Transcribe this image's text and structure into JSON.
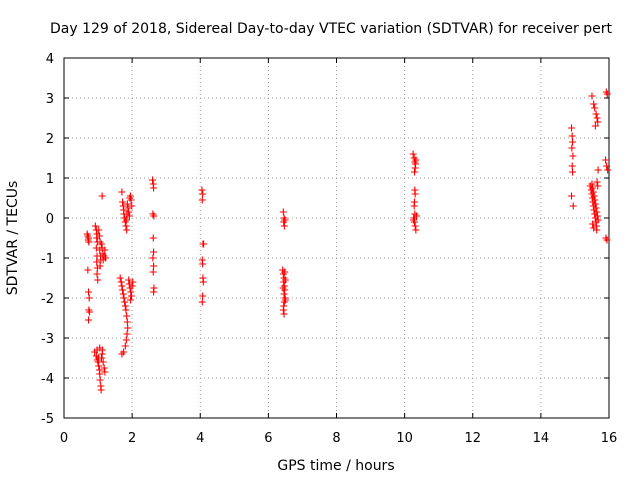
{
  "chart_data": {
    "type": "scatter",
    "title": "Day 129 of 2018, Sidereal Day-to-day VTEC variation (SDTVAR) for receiver pert",
    "xlabel": "GPS time / hours",
    "ylabel": "SDTVAR / TECUs",
    "xlim": [
      0,
      16
    ],
    "ylim": [
      -5,
      4
    ],
    "xticks": [
      "0",
      "2",
      "4",
      "6",
      "8",
      "10",
      "12",
      "14",
      "16"
    ],
    "yticks": [
      "-5",
      "-4",
      "-3",
      "-2",
      "-1",
      "0",
      "1",
      "2",
      "3",
      "4"
    ],
    "grid": true,
    "marker": "+",
    "color": "#ff0000",
    "series": [
      {
        "name": "SDTVAR",
        "points": [
          [
            0.68,
            -0.4
          ],
          [
            0.7,
            -0.45
          ],
          [
            0.72,
            -0.5
          ],
          [
            0.71,
            -0.55
          ],
          [
            0.73,
            -0.6
          ],
          [
            0.7,
            -1.3
          ],
          [
            0.72,
            -1.85
          ],
          [
            0.74,
            -2.0
          ],
          [
            0.73,
            -2.3
          ],
          [
            0.75,
            -2.35
          ],
          [
            0.72,
            -2.55
          ],
          [
            0.92,
            -0.2
          ],
          [
            0.95,
            -0.3
          ],
          [
            0.97,
            -0.4
          ],
          [
            0.96,
            -0.5
          ],
          [
            0.98,
            -0.6
          ],
          [
            0.95,
            -0.75
          ],
          [
            0.97,
            -0.95
          ],
          [
            0.96,
            -1.1
          ],
          [
            0.98,
            -1.25
          ],
          [
            0.97,
            -1.4
          ],
          [
            0.99,
            -1.55
          ],
          [
            1.02,
            -0.3
          ],
          [
            1.04,
            -0.45
          ],
          [
            1.06,
            -0.6
          ],
          [
            1.05,
            -0.8
          ],
          [
            1.07,
            -0.95
          ],
          [
            1.08,
            -1.05
          ],
          [
            1.06,
            -1.2
          ],
          [
            1.1,
            -0.65
          ],
          [
            1.12,
            -0.75
          ],
          [
            1.14,
            -0.9
          ],
          [
            1.15,
            -1.05
          ],
          [
            1.18,
            -0.95
          ],
          [
            1.2,
            -0.8
          ],
          [
            1.22,
            -1.0
          ],
          [
            1.12,
            0.55
          ],
          [
            0.9,
            -3.35
          ],
          [
            0.95,
            -3.45
          ],
          [
            0.98,
            -3.55
          ],
          [
            1.0,
            -3.6
          ],
          [
            1.02,
            -3.7
          ],
          [
            1.04,
            -3.8
          ],
          [
            1.05,
            -3.9
          ],
          [
            1.06,
            -4.05
          ],
          [
            1.08,
            -4.2
          ],
          [
            1.09,
            -4.3
          ],
          [
            1.1,
            -3.5
          ],
          [
            1.12,
            -3.4
          ],
          [
            1.13,
            -3.3
          ],
          [
            1.15,
            -3.6
          ],
          [
            1.18,
            -3.75
          ],
          [
            1.2,
            -3.85
          ],
          [
            1.05,
            -3.25
          ],
          [
            0.97,
            -3.3
          ],
          [
            1.01,
            -3.5
          ],
          [
            1.7,
            0.65
          ],
          [
            1.72,
            0.4
          ],
          [
            1.74,
            0.3
          ],
          [
            1.75,
            0.2
          ],
          [
            1.76,
            0.1
          ],
          [
            1.78,
            0.0
          ],
          [
            1.8,
            -0.1
          ],
          [
            1.82,
            -0.2
          ],
          [
            1.84,
            -0.3
          ],
          [
            1.86,
            0.35
          ],
          [
            1.88,
            0.25
          ],
          [
            1.9,
            0.15
          ],
          [
            1.92,
            0.05
          ],
          [
            1.93,
            0.5
          ],
          [
            1.95,
            0.55
          ],
          [
            1.97,
            0.45
          ],
          [
            1.99,
            0.3
          ],
          [
            1.85,
            0.1
          ],
          [
            1.83,
            -0.05
          ],
          [
            1.65,
            -1.5
          ],
          [
            1.68,
            -1.6
          ],
          [
            1.7,
            -1.7
          ],
          [
            1.72,
            -1.8
          ],
          [
            1.74,
            -1.9
          ],
          [
            1.76,
            -2.0
          ],
          [
            1.78,
            -2.1
          ],
          [
            1.8,
            -2.2
          ],
          [
            1.82,
            -2.3
          ],
          [
            1.84,
            -2.45
          ],
          [
            1.86,
            -2.6
          ],
          [
            1.87,
            -2.75
          ],
          [
            1.85,
            -2.9
          ],
          [
            1.83,
            -3.05
          ],
          [
            1.8,
            -3.2
          ],
          [
            1.75,
            -3.35
          ],
          [
            1.7,
            -3.4
          ],
          [
            1.9,
            -1.55
          ],
          [
            1.92,
            -1.65
          ],
          [
            1.94,
            -1.75
          ],
          [
            1.96,
            -1.85
          ],
          [
            1.98,
            -1.95
          ],
          [
            2.0,
            -1.7
          ],
          [
            2.02,
            -1.6
          ],
          [
            1.95,
            -2.05
          ],
          [
            2.6,
            0.95
          ],
          [
            2.62,
            0.85
          ],
          [
            2.63,
            0.75
          ],
          [
            2.61,
            0.1
          ],
          [
            2.64,
            0.05
          ],
          [
            2.62,
            -0.5
          ],
          [
            2.63,
            -0.85
          ],
          [
            2.61,
            -1.0
          ],
          [
            2.63,
            -1.2
          ],
          [
            2.62,
            -1.35
          ],
          [
            2.64,
            -1.75
          ],
          [
            2.63,
            -1.85
          ],
          [
            4.05,
            0.7
          ],
          [
            4.07,
            0.6
          ],
          [
            4.06,
            0.45
          ],
          [
            4.08,
            -0.65
          ],
          [
            4.1,
            -0.65
          ],
          [
            4.06,
            -1.05
          ],
          [
            4.07,
            -1.15
          ],
          [
            4.08,
            -1.5
          ],
          [
            4.09,
            -1.6
          ],
          [
            4.07,
            -1.95
          ],
          [
            4.06,
            -2.1
          ],
          [
            6.42,
            -1.3
          ],
          [
            6.44,
            -1.4
          ],
          [
            6.46,
            -1.5
          ],
          [
            6.45,
            -1.6
          ],
          [
            6.47,
            -1.7
          ],
          [
            6.48,
            -1.8
          ],
          [
            6.46,
            -1.9
          ],
          [
            6.49,
            -2.0
          ],
          [
            6.47,
            -2.1
          ],
          [
            6.45,
            -2.2
          ],
          [
            6.44,
            -2.3
          ],
          [
            6.46,
            -2.4
          ],
          [
            6.48,
            -1.35
          ],
          [
            6.5,
            -1.55
          ],
          [
            6.43,
            -1.75
          ],
          [
            6.5,
            -2.05
          ],
          [
            6.44,
            0.15
          ],
          [
            6.46,
            0.0
          ],
          [
            6.48,
            -0.05
          ],
          [
            6.45,
            -0.1
          ],
          [
            6.47,
            -0.2
          ],
          [
            6.49,
            -0.05
          ],
          [
            10.25,
            1.6
          ],
          [
            10.28,
            1.5
          ],
          [
            10.3,
            1.4
          ],
          [
            10.32,
            1.35
          ],
          [
            10.31,
            1.25
          ],
          [
            10.29,
            1.15
          ],
          [
            10.33,
            1.45
          ],
          [
            10.3,
            0.7
          ],
          [
            10.31,
            0.6
          ],
          [
            10.29,
            0.4
          ],
          [
            10.28,
            0.3
          ],
          [
            10.3,
            0.1
          ],
          [
            10.27,
            0.0
          ],
          [
            10.29,
            -0.1
          ],
          [
            10.31,
            -0.2
          ],
          [
            10.33,
            -0.3
          ],
          [
            10.26,
            -0.05
          ],
          [
            10.35,
            0.05
          ],
          [
            14.9,
            2.25
          ],
          [
            14.92,
            2.05
          ],
          [
            14.93,
            1.9
          ],
          [
            14.91,
            1.75
          ],
          [
            14.94,
            1.55
          ],
          [
            14.92,
            1.3
          ],
          [
            14.93,
            1.15
          ],
          [
            14.9,
            0.55
          ],
          [
            14.95,
            0.3
          ],
          [
            15.45,
            0.8
          ],
          [
            15.48,
            0.7
          ],
          [
            15.5,
            0.6
          ],
          [
            15.52,
            0.5
          ],
          [
            15.53,
            0.4
          ],
          [
            15.55,
            0.3
          ],
          [
            15.56,
            0.2
          ],
          [
            15.58,
            0.1
          ],
          [
            15.6,
            0.0
          ],
          [
            15.62,
            -0.1
          ],
          [
            15.63,
            -0.2
          ],
          [
            15.64,
            -0.3
          ],
          [
            15.5,
            0.85
          ],
          [
            15.52,
            0.75
          ],
          [
            15.54,
            0.65
          ],
          [
            15.56,
            0.55
          ],
          [
            15.58,
            0.45
          ],
          [
            15.6,
            0.35
          ],
          [
            15.62,
            0.25
          ],
          [
            15.64,
            0.15
          ],
          [
            15.66,
            0.05
          ],
          [
            15.68,
            -0.05
          ],
          [
            15.65,
            0.9
          ],
          [
            15.67,
            0.8
          ],
          [
            15.55,
            -0.25
          ],
          [
            15.52,
            -0.15
          ],
          [
            15.68,
            1.2
          ],
          [
            15.5,
            3.05
          ],
          [
            15.55,
            2.85
          ],
          [
            15.58,
            2.75
          ],
          [
            15.62,
            2.6
          ],
          [
            15.65,
            2.5
          ],
          [
            15.67,
            2.4
          ],
          [
            15.6,
            2.3
          ],
          [
            15.92,
            3.15
          ],
          [
            15.95,
            3.1
          ],
          [
            15.9,
            1.45
          ],
          [
            15.93,
            1.3
          ],
          [
            15.96,
            1.2
          ],
          [
            15.91,
            -0.5
          ],
          [
            15.94,
            -0.55
          ]
        ]
      }
    ]
  }
}
